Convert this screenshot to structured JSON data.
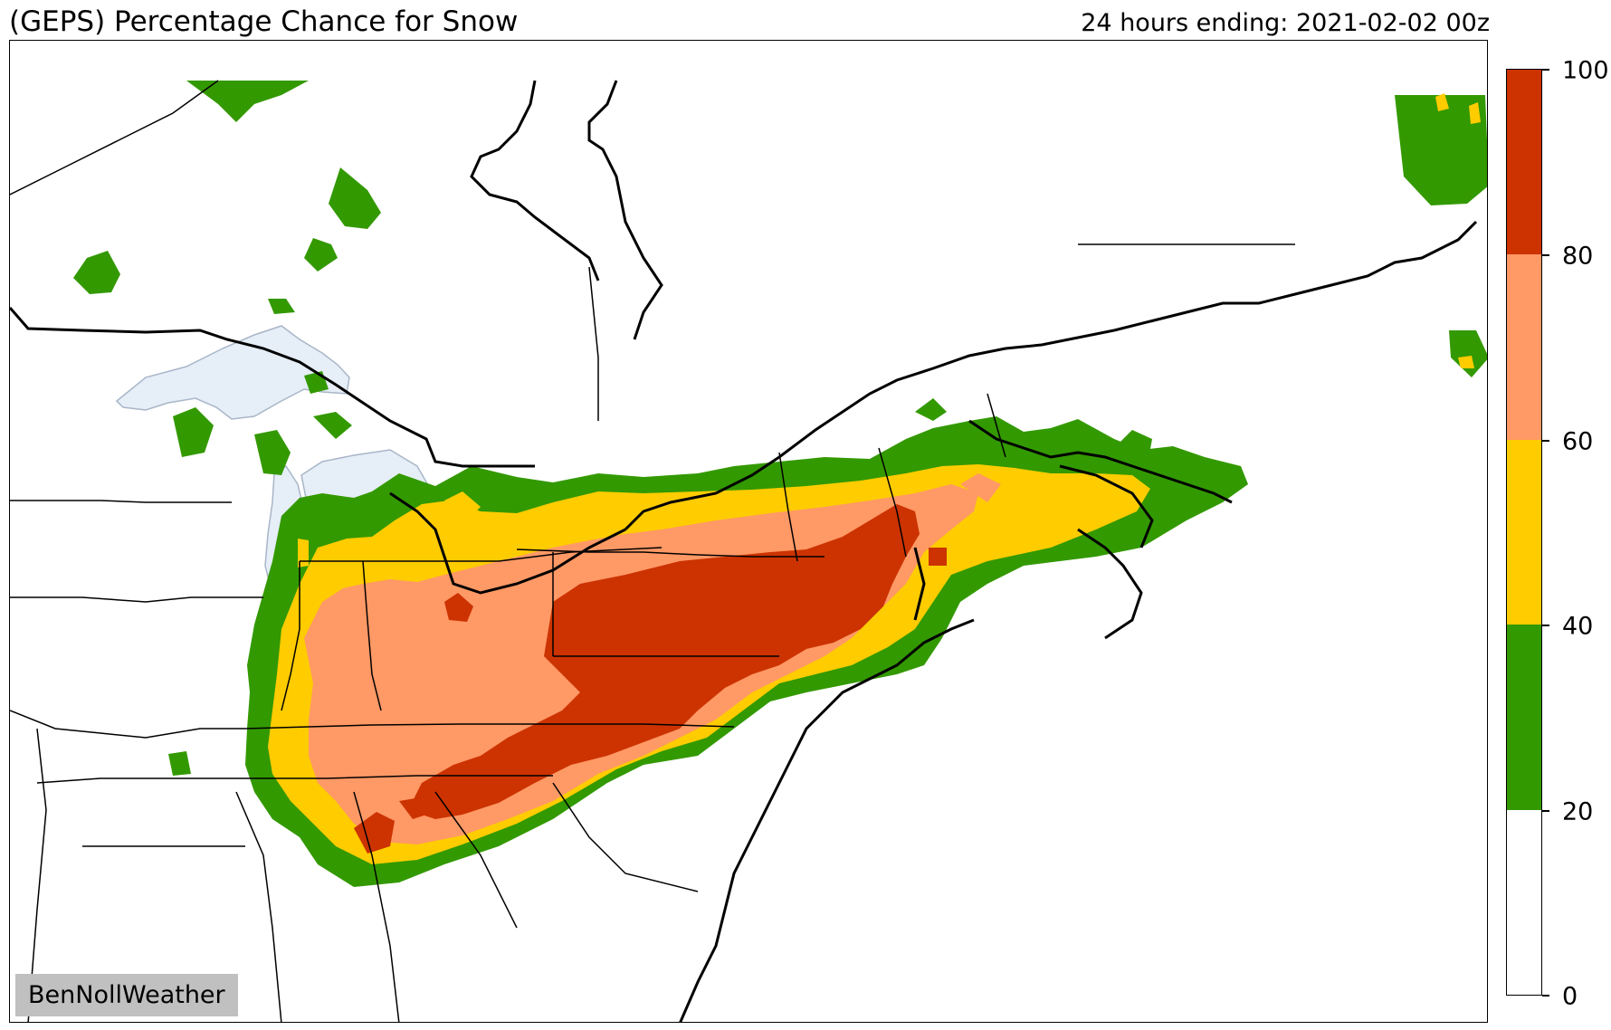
{
  "header": {
    "title": "(GEPS) Percentage Chance for Snow",
    "valid_time": "24 hours ending: 2021-02-02 00z"
  },
  "credit": "BenNollWeather",
  "colorbar": {
    "ticks": [
      "100",
      "80",
      "60",
      "40",
      "20",
      "0"
    ],
    "bins": [
      {
        "range": "80-100",
        "color": "#cc3300"
      },
      {
        "range": "60-80",
        "color": "#ff9966"
      },
      {
        "range": "40-60",
        "color": "#ffcc00"
      },
      {
        "range": "20-40",
        "color": "#339900"
      },
      {
        "range": "0-20",
        "color": "#ffffff"
      }
    ]
  },
  "colors": {
    "lakes": "#e6eef8",
    "lake_edge": "#a8b6c8",
    "borders": "#000000"
  }
}
